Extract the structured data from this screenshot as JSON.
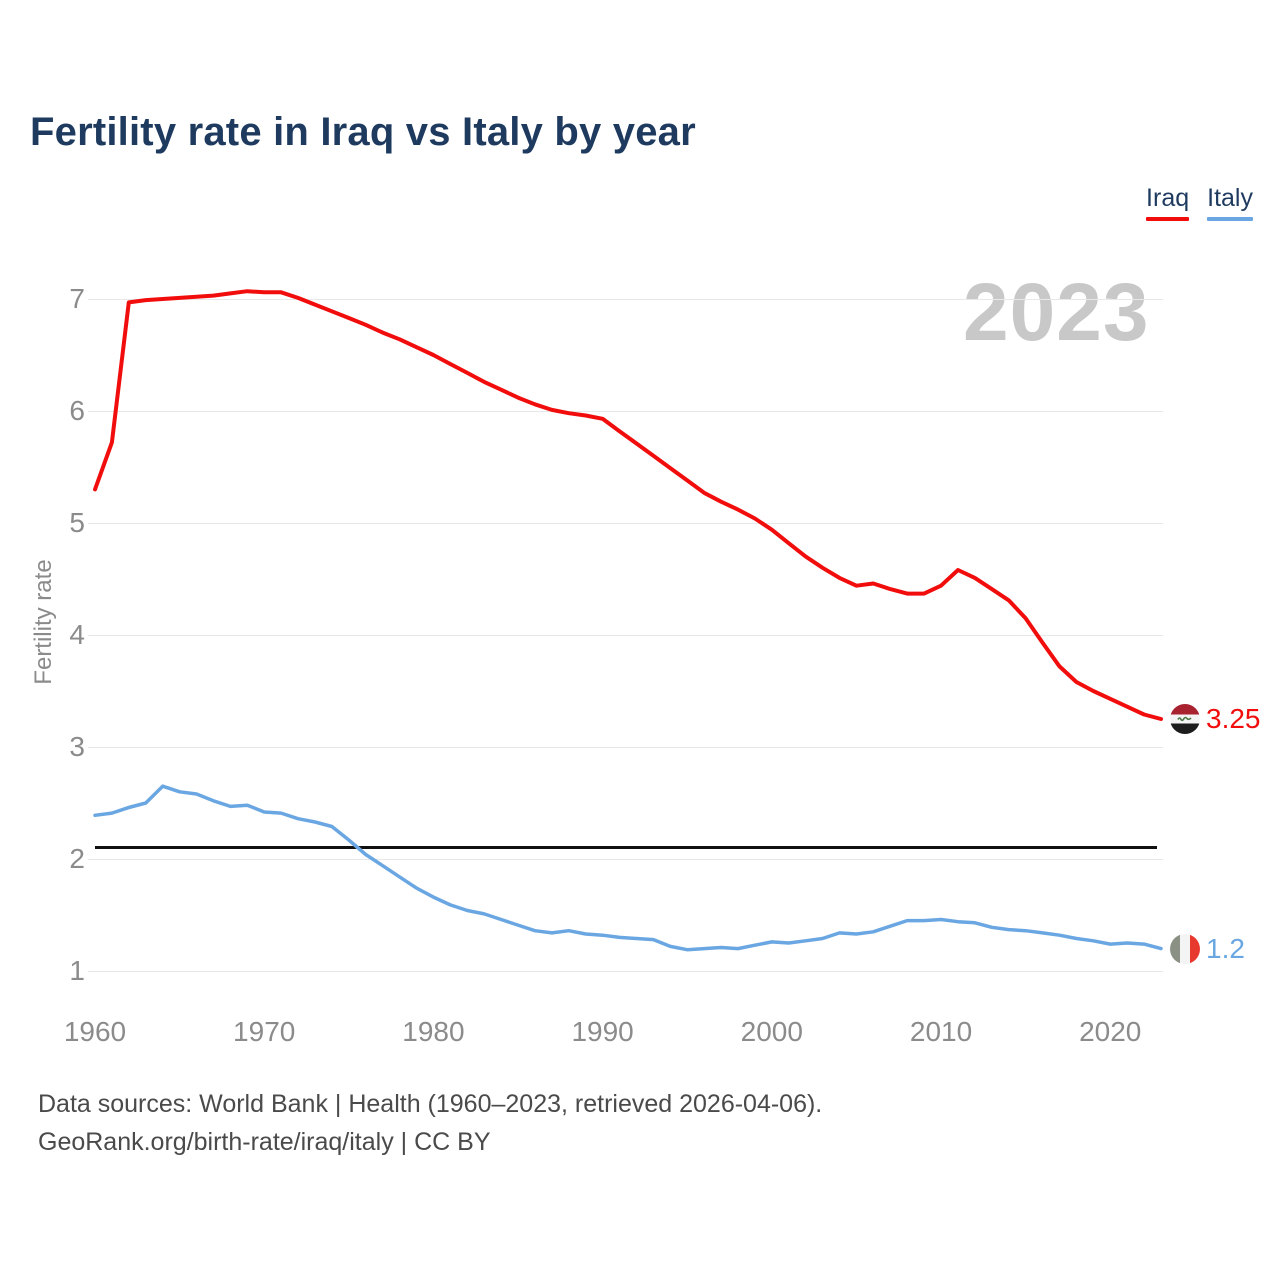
{
  "title": "Fertility rate in Iraq vs Italy by year",
  "watermark": "2023",
  "legend": [
    {
      "label": "Iraq",
      "color": "#f20d0d"
    },
    {
      "label": "Italy",
      "color": "#6aa7e2"
    }
  ],
  "chart_data": {
    "type": "line",
    "title": "Fertility rate in Iraq vs Italy by year",
    "xlabel": "",
    "ylabel": "Fertility rate",
    "ylim": [
      0.8,
      7.3
    ],
    "grid": "horizontal",
    "legend_position": "top-right",
    "years": [
      1960,
      1961,
      1962,
      1963,
      1964,
      1965,
      1966,
      1967,
      1968,
      1969,
      1970,
      1971,
      1972,
      1973,
      1974,
      1975,
      1976,
      1977,
      1978,
      1979,
      1980,
      1981,
      1982,
      1983,
      1984,
      1985,
      1986,
      1987,
      1988,
      1989,
      1990,
      1991,
      1992,
      1993,
      1994,
      1995,
      1996,
      1997,
      1998,
      1999,
      2000,
      2001,
      2002,
      2003,
      2004,
      2005,
      2006,
      2007,
      2008,
      2009,
      2010,
      2011,
      2012,
      2013,
      2014,
      2015,
      2016,
      2017,
      2018,
      2019,
      2020,
      2021,
      2022,
      2023
    ],
    "series": [
      {
        "name": "Iraq",
        "color": "#f20d0d",
        "values": [
          5.3,
          5.72,
          6.97,
          6.99,
          7.0,
          7.01,
          7.02,
          7.03,
          7.05,
          7.07,
          7.06,
          7.06,
          7.01,
          6.95,
          6.89,
          6.83,
          6.77,
          6.7,
          6.64,
          6.57,
          6.5,
          6.42,
          6.34,
          6.26,
          6.19,
          6.12,
          6.06,
          6.01,
          5.98,
          5.96,
          5.93,
          5.82,
          5.71,
          5.6,
          5.49,
          5.38,
          5.27,
          5.19,
          5.12,
          5.04,
          4.94,
          4.82,
          4.7,
          4.6,
          4.51,
          4.44,
          4.46,
          4.41,
          4.37,
          4.37,
          4.44,
          4.58,
          4.51,
          4.41,
          4.31,
          4.15,
          3.93,
          3.72,
          3.58,
          3.5,
          3.43,
          3.36,
          3.29,
          3.25
        ]
      },
      {
        "name": "Italy",
        "color": "#6aa7e2",
        "values": [
          2.39,
          2.41,
          2.46,
          2.5,
          2.65,
          2.6,
          2.58,
          2.52,
          2.47,
          2.48,
          2.42,
          2.41,
          2.36,
          2.33,
          2.29,
          2.17,
          2.04,
          1.94,
          1.84,
          1.74,
          1.66,
          1.59,
          1.54,
          1.51,
          1.46,
          1.41,
          1.36,
          1.34,
          1.36,
          1.33,
          1.32,
          1.3,
          1.29,
          1.28,
          1.22,
          1.19,
          1.2,
          1.21,
          1.2,
          1.23,
          1.26,
          1.25,
          1.27,
          1.29,
          1.34,
          1.33,
          1.35,
          1.4,
          1.45,
          1.45,
          1.46,
          1.44,
          1.43,
          1.39,
          1.37,
          1.36,
          1.34,
          1.32,
          1.29,
          1.27,
          1.24,
          1.25,
          1.24,
          1.2
        ]
      }
    ],
    "end_labels": [
      {
        "series": "Iraq",
        "text": "3.25",
        "value": 3.25
      },
      {
        "series": "Italy",
        "text": "1.2",
        "value": 1.2
      }
    ],
    "reference_line": {
      "value": 2.1,
      "color": "#111111"
    },
    "y_ticks": [
      "7",
      "6",
      "5",
      "4",
      "3",
      "2",
      "1"
    ],
    "x_ticks": [
      "1960",
      "1970",
      "1980",
      "1990",
      "2000",
      "2010",
      "2020"
    ]
  },
  "footer": {
    "line1": "Data sources: World Bank | Health (1960–2023, retrieved 2026-04-06).",
    "line2": "GeoRank.org/birth-rate/iraq/italy | CC BY"
  }
}
